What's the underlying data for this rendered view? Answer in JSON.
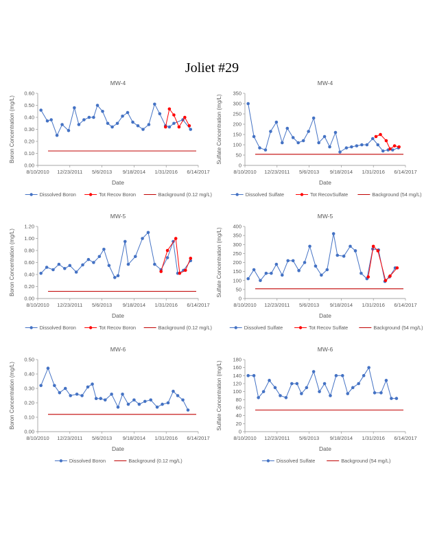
{
  "page": {
    "title": "Joliet #29"
  },
  "colors": {
    "dissolved": "#4472C4",
    "total": "#FF0000",
    "background": "#C00000",
    "axis": "#888888",
    "text": "#595959"
  },
  "chart_data": [
    {
      "type": "line",
      "title": "MW-4",
      "xlabel": "Date",
      "ylabel": "Boron Concentration (mg/L)",
      "ylim": [
        0,
        0.6
      ],
      "ystep": 0.1,
      "ydecimals": 2,
      "xticks": [
        "8/10/2010",
        "12/23/2011",
        "5/6/2013",
        "9/18/2014",
        "1/31/2016",
        "6/14/2017"
      ],
      "xlim": [
        0,
        2500
      ],
      "xtick_values": [
        0,
        500,
        1000,
        1500,
        2000,
        2500
      ],
      "legend": [
        "Dissolved Boron",
        "Tot Recov Boron",
        "Background  (0.12 mg/L)"
      ],
      "background": 0.12,
      "series": [
        {
          "name": "Dissolved Boron",
          "x": [
            50,
            150,
            210,
            300,
            380,
            480,
            570,
            640,
            720,
            800,
            870,
            930,
            1010,
            1090,
            1160,
            1240,
            1320,
            1400,
            1480,
            1560,
            1640,
            1730,
            1820,
            1900,
            1990,
            2050,
            2120,
            2260,
            2380
          ],
          "y": [
            0.46,
            0.37,
            0.38,
            0.25,
            0.34,
            0.29,
            0.48,
            0.34,
            0.38,
            0.4,
            0.4,
            0.5,
            0.45,
            0.35,
            0.32,
            0.35,
            0.41,
            0.44,
            0.36,
            0.33,
            0.3,
            0.34,
            0.51,
            0.43,
            0.33,
            0.32,
            0.35,
            0.38,
            0.3
          ]
        },
        {
          "name": "Tot Recov Boron",
          "x": [
            1990,
            2050,
            2120,
            2200,
            2290,
            2360
          ],
          "y": [
            0.32,
            0.47,
            0.42,
            0.32,
            0.4,
            0.33
          ]
        }
      ]
    },
    {
      "type": "line",
      "title": "MW-4",
      "xlabel": "Date",
      "ylabel": "Sulfate Concentration (mg/L)",
      "ylim": [
        0,
        350
      ],
      "ystep": 50,
      "ydecimals": 0,
      "xticks": [
        "8/10/2010",
        "12/23/2011",
        "5/6/2013",
        "9/18/2014",
        "1/31/2016",
        "6/14/2017"
      ],
      "xlim": [
        0,
        2500
      ],
      "xtick_values": [
        0,
        500,
        1000,
        1500,
        2000,
        2500
      ],
      "legend": [
        "Dissolved Sulfate",
        "Tot RecovSulfate",
        "Background  (54 mg/L)"
      ],
      "background": 54,
      "series": [
        {
          "name": "Dissolved Sulfate",
          "x": [
            50,
            140,
            230,
            320,
            400,
            490,
            580,
            660,
            750,
            830,
            910,
            990,
            1070,
            1150,
            1240,
            1320,
            1410,
            1480,
            1580,
            1660,
            1740,
            1820,
            1900,
            1990,
            2070,
            2150,
            2230,
            2300,
            2390
          ],
          "y": [
            300,
            140,
            85,
            75,
            165,
            210,
            110,
            180,
            135,
            110,
            120,
            165,
            230,
            110,
            140,
            90,
            160,
            65,
            85,
            90,
            95,
            100,
            100,
            130,
            100,
            70,
            75,
            75,
            85
          ]
        },
        {
          "name": "Tot RecovSulfate",
          "x": [
            2040,
            2110,
            2200,
            2260,
            2330,
            2400
          ],
          "y": [
            140,
            150,
            120,
            80,
            95,
            90
          ]
        }
      ]
    },
    {
      "type": "line",
      "title": "MW-5",
      "xlabel": "Date",
      "ylabel": "Boron Concentration (mg/L)",
      "ylim": [
        0,
        1.2
      ],
      "ystep": 0.2,
      "ydecimals": 2,
      "xticks": [
        "8/10/2010",
        "12/23/2011",
        "5/6/2013",
        "9/18/2014",
        "1/31/2016",
        "6/14/2017"
      ],
      "xlim": [
        0,
        2500
      ],
      "xtick_values": [
        0,
        500,
        1000,
        1500,
        2000,
        2500
      ],
      "legend": [
        "Dissolved Boron",
        "Tot Recov Boron",
        "Background  (0.12 mg/L)"
      ],
      "background": 0.12,
      "series": [
        {
          "name": "Dissolved Boron",
          "x": [
            50,
            140,
            240,
            330,
            420,
            500,
            600,
            700,
            790,
            870,
            960,
            1030,
            1110,
            1200,
            1250,
            1360,
            1410,
            1520,
            1630,
            1720,
            1820,
            1920,
            2020,
            2110,
            2180,
            2270,
            2380
          ],
          "y": [
            0.42,
            0.52,
            0.48,
            0.57,
            0.5,
            0.55,
            0.44,
            0.56,
            0.65,
            0.6,
            0.7,
            0.82,
            0.55,
            0.35,
            0.38,
            0.95,
            0.57,
            0.7,
            1.0,
            1.1,
            0.57,
            0.48,
            0.68,
            0.95,
            0.42,
            0.47,
            0.63
          ]
        },
        {
          "name": "Tot Recov Boron",
          "x": [
            1920,
            2020,
            2150,
            2210,
            2300,
            2380
          ],
          "y": [
            0.45,
            0.8,
            1.0,
            0.42,
            0.47,
            0.67
          ]
        }
      ]
    },
    {
      "type": "line",
      "title": "MW-5",
      "xlabel": "Date",
      "ylabel": "Sulfate Concentration (mg/L)",
      "ylim": [
        0,
        400
      ],
      "ystep": 50,
      "ydecimals": 0,
      "xticks": [
        "8/10/2010",
        "12/23/2011",
        "5/6/2013",
        "9/18/2014",
        "1/31/2016",
        "6/14/2017"
      ],
      "xlim": [
        0,
        2500
      ],
      "xtick_values": [
        0,
        500,
        1000,
        1500,
        2000,
        2500
      ],
      "legend": [
        "Dissolved Sulfate",
        "Tot Recov Sulfate",
        "Background  (54 mg/L)"
      ],
      "background": 54,
      "series": [
        {
          "name": "Dissolved Sulfate",
          "x": [
            50,
            140,
            240,
            330,
            410,
            490,
            580,
            670,
            750,
            840,
            930,
            1010,
            1100,
            1190,
            1280,
            1380,
            1440,
            1540,
            1640,
            1720,
            1810,
            1900,
            1990,
            2080,
            2180,
            2250,
            2340
          ],
          "y": [
            110,
            160,
            100,
            140,
            140,
            190,
            130,
            210,
            210,
            155,
            200,
            290,
            180,
            130,
            160,
            360,
            240,
            235,
            290,
            265,
            140,
            110,
            275,
            270,
            95,
            120,
            170
          ]
        },
        {
          "name": "Tot Recov Sulfate",
          "x": [
            1920,
            2000,
            2070,
            2190,
            2260,
            2370
          ],
          "y": [
            120,
            290,
            265,
            100,
            125,
            170
          ]
        }
      ]
    },
    {
      "type": "line",
      "title": "MW-6",
      "xlabel": "Date",
      "ylabel": "Boron Concentration (mg/L)",
      "ylim": [
        0,
        0.5
      ],
      "ystep": 0.1,
      "ydecimals": 2,
      "xticks": [
        "8/10/2010",
        "12/23/2011",
        "5/6/2013",
        "9/18/2014",
        "1/31/2016",
        "6/14/2017"
      ],
      "xlim": [
        0,
        2500
      ],
      "xtick_values": [
        0,
        500,
        1000,
        1500,
        2000,
        2500
      ],
      "legend": [
        "Dissolved Boron",
        "Background  (0.12 mg/L)"
      ],
      "background": 0.12,
      "series": [
        {
          "name": "Dissolved Boron",
          "x": [
            50,
            160,
            260,
            340,
            430,
            510,
            610,
            690,
            780,
            850,
            910,
            980,
            1050,
            1150,
            1250,
            1320,
            1410,
            1500,
            1580,
            1670,
            1760,
            1860,
            1940,
            2030,
            2110,
            2180,
            2260,
            2340
          ],
          "y": [
            0.32,
            0.44,
            0.32,
            0.27,
            0.3,
            0.25,
            0.26,
            0.25,
            0.31,
            0.33,
            0.23,
            0.23,
            0.22,
            0.26,
            0.17,
            0.26,
            0.19,
            0.22,
            0.19,
            0.21,
            0.22,
            0.17,
            0.19,
            0.2,
            0.28,
            0.25,
            0.22,
            0.15
          ]
        }
      ]
    },
    {
      "type": "line",
      "title": "MW-6",
      "xlabel": "Date",
      "ylabel": "Sulfate Concentration (mg/L)",
      "ylim": [
        0,
        180
      ],
      "ystep": 20,
      "ydecimals": 0,
      "xticks": [
        "8/10/2010",
        "12/23/2011",
        "5/6/2013",
        "9/18/2014",
        "1/31/2016",
        "6/14/2017"
      ],
      "xlim": [
        0,
        2500
      ],
      "xtick_values": [
        0,
        500,
        1000,
        1500,
        2000,
        2500
      ],
      "legend": [
        "Dissolved Sulfate",
        "Background  (54 mg/L)"
      ],
      "background": 54,
      "series": [
        {
          "name": "Dissolved Sulfate",
          "x": [
            50,
            140,
            210,
            290,
            380,
            470,
            550,
            640,
            730,
            810,
            880,
            960,
            1070,
            1160,
            1240,
            1330,
            1420,
            1520,
            1600,
            1680,
            1770,
            1850,
            1930,
            2020,
            2120,
            2200,
            2280,
            2360
          ],
          "y": [
            140,
            140,
            85,
            100,
            128,
            110,
            90,
            85,
            120,
            120,
            95,
            110,
            150,
            100,
            120,
            90,
            140,
            140,
            95,
            110,
            120,
            140,
            160,
            97,
            97,
            128,
            83,
            83
          ]
        }
      ]
    }
  ]
}
